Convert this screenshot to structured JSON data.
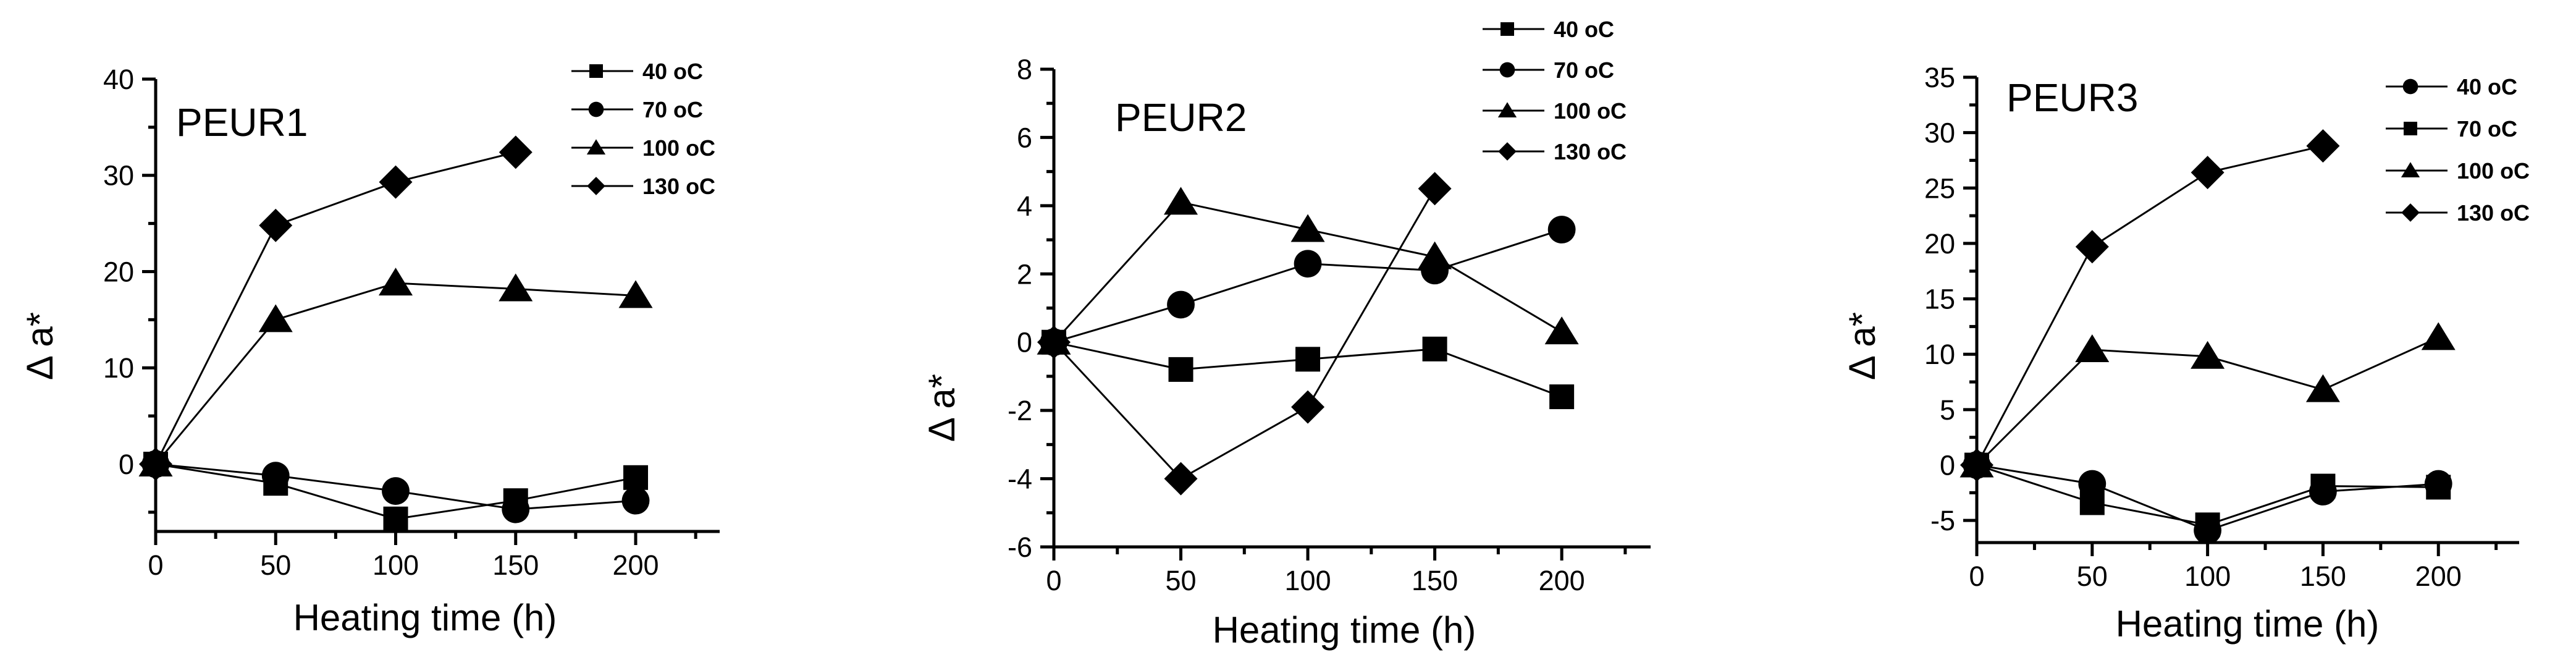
{
  "chart_data": [
    {
      "type": "line",
      "title": "PEUR1",
      "xlabel": "Heating time (h)",
      "ylabel": "Δ a*",
      "xlim": [
        0,
        235
      ],
      "ylim": [
        -7,
        40
      ],
      "x_ticks": [
        0,
        50,
        100,
        150,
        200
      ],
      "y_ticks": [
        0,
        10,
        20,
        30,
        40
      ],
      "x_tick_labels": [
        "0",
        "50",
        "100",
        "150",
        "200"
      ],
      "y_tick_labels": [
        "0",
        "10",
        "20",
        "30",
        "40"
      ],
      "legend_position": "top-right",
      "series": [
        {
          "name": "40 oC",
          "marker": "square",
          "x": [
            0,
            50,
            100,
            150,
            200
          ],
          "values": [
            0,
            -2,
            -5.7,
            -3.8,
            -1.4
          ]
        },
        {
          "name": "70 oC",
          "marker": "circle",
          "x": [
            0,
            50,
            100,
            150,
            200
          ],
          "values": [
            0,
            -1.2,
            -2.8,
            -4.7,
            -3.8
          ]
        },
        {
          "name": "100 oC",
          "marker": "triangle",
          "x": [
            0,
            50,
            100,
            150,
            200
          ],
          "values": [
            0,
            15,
            18.8,
            18.2,
            17.5
          ]
        },
        {
          "name": "130 oC",
          "marker": "diamond",
          "x": [
            0,
            50,
            100,
            150
          ],
          "values": [
            0,
            24.8,
            29.3,
            32.4
          ]
        }
      ]
    },
    {
      "type": "line",
      "title": "PEUR2",
      "xlabel": "Heating time (h)",
      "ylabel": "Δ a*",
      "xlim": [
        0,
        235
      ],
      "ylim": [
        -6,
        8
      ],
      "x_ticks": [
        0,
        50,
        100,
        150,
        200
      ],
      "y_ticks": [
        -6,
        -4,
        -2,
        0,
        2,
        4,
        6,
        8
      ],
      "x_tick_labels": [
        "0",
        "50",
        "100",
        "150",
        "200"
      ],
      "y_tick_labels": [
        "-6",
        "-4",
        "-2",
        "0",
        "2",
        "4",
        "6",
        "8"
      ],
      "legend_position": "top-right",
      "series": [
        {
          "name": "40 oC",
          "marker": "square",
          "x": [
            0,
            50,
            100,
            150,
            200
          ],
          "values": [
            0,
            -0.8,
            -0.5,
            -0.2,
            -1.6
          ]
        },
        {
          "name": "70 oC",
          "marker": "circle",
          "x": [
            0,
            50,
            100,
            150,
            200
          ],
          "values": [
            0,
            1.1,
            2.3,
            2.1,
            3.3
          ]
        },
        {
          "name": "100 oC",
          "marker": "triangle",
          "x": [
            0,
            50,
            100,
            150,
            200
          ],
          "values": [
            0,
            4.1,
            3.3,
            2.5,
            0.3
          ]
        },
        {
          "name": "130 oC",
          "marker": "diamond",
          "x": [
            0,
            50,
            100,
            150
          ],
          "values": [
            0,
            -4,
            -1.9,
            4.5
          ]
        }
      ]
    },
    {
      "type": "line",
      "title": "PEUR3",
      "xlabel": "Heating time (h)",
      "ylabel": "Δ a*",
      "xlim": [
        0,
        235
      ],
      "ylim": [
        -7,
        35
      ],
      "x_ticks": [
        0,
        50,
        100,
        150,
        200
      ],
      "y_ticks": [
        -5,
        0,
        5,
        10,
        15,
        20,
        25,
        30,
        35
      ],
      "x_tick_labels": [
        "0",
        "50",
        "100",
        "150",
        "200"
      ],
      "y_tick_labels": [
        "-5",
        "0",
        "5",
        "10",
        "15",
        "20",
        "25",
        "30",
        "35"
      ],
      "legend_position": "top-right",
      "series": [
        {
          "name": "40 oC",
          "marker": "circle",
          "x": [
            0,
            50,
            100,
            150,
            200
          ],
          "values": [
            0,
            -1.7,
            -5.9,
            -2.4,
            -1.7
          ]
        },
        {
          "name": "70 oC",
          "marker": "square",
          "x": [
            0,
            50,
            100,
            150,
            200
          ],
          "values": [
            0,
            -3.4,
            -5.4,
            -1.9,
            -2
          ]
        },
        {
          "name": "100 oC",
          "marker": "triangle",
          "x": [
            0,
            50,
            100,
            150,
            200
          ],
          "values": [
            0,
            10.4,
            9.8,
            6.8,
            11.5
          ]
        },
        {
          "name": "130 oC",
          "marker": "diamond",
          "x": [
            0,
            50,
            100,
            150
          ],
          "values": [
            0,
            19.7,
            26.4,
            28.8
          ]
        }
      ]
    }
  ]
}
